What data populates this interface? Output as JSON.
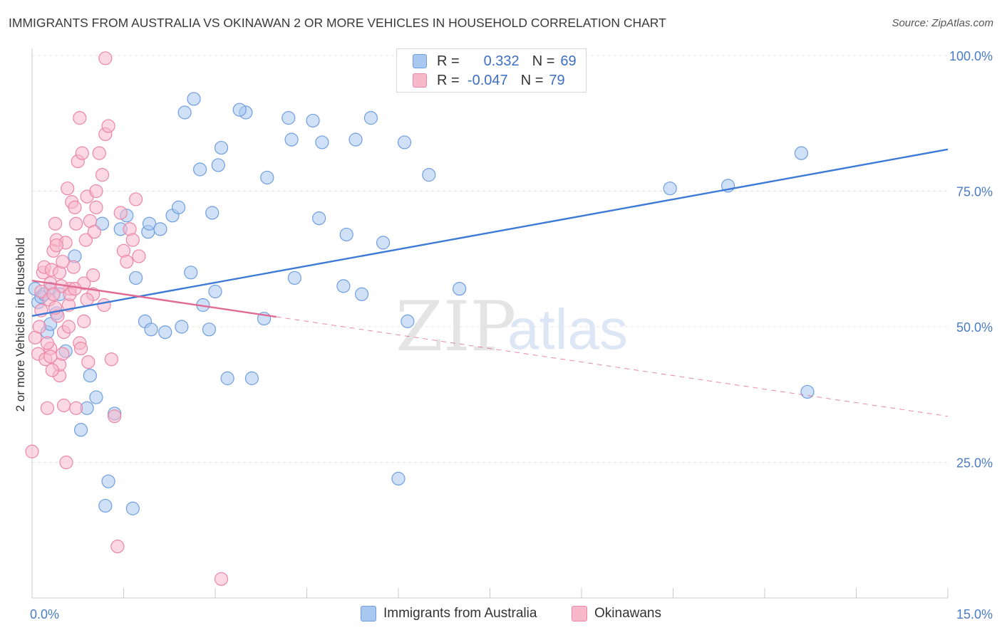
{
  "header": {
    "title": "IMMIGRANTS FROM AUSTRALIA VS OKINAWAN 2 OR MORE VEHICLES IN HOUSEHOLD CORRELATION CHART",
    "source": "Source: ZipAtlas.com"
  },
  "watermark": {
    "zip": "ZIP",
    "atlas": "atlas"
  },
  "legend": {
    "r_label": "R =",
    "n_label": "N =",
    "rows": [
      {
        "r": "0.332",
        "n": "69",
        "color": "#a9c8f0",
        "border": "#6f9ee0"
      },
      {
        "r": "-0.047",
        "n": "79",
        "color": "#f8b8cc",
        "border": "#ec86a6"
      }
    ]
  },
  "chart_data": {
    "type": "scatter",
    "xlabel": "",
    "ylabel": "2 or more Vehicles in Household",
    "xlim": [
      0,
      15
    ],
    "ylim": [
      0,
      100
    ],
    "x_tick_labels": [
      "0.0%",
      "15.0%"
    ],
    "y_tick_labels": [
      "25.0%",
      "50.0%",
      "75.0%",
      "100.0%"
    ],
    "y_ticks": [
      25,
      50,
      75,
      100
    ],
    "grid": true,
    "legend_position": "bottom-center",
    "series": [
      {
        "name": "Immigrants from Australia",
        "color": "#a9c8f0",
        "stroke": "#6f9ee0",
        "trend": {
          "x": [
            0,
            15
          ],
          "y": [
            52,
            82.7
          ],
          "color": "#3d7ad6",
          "dashed_from": null
        },
        "points": [
          [
            0.05,
            57
          ],
          [
            0.1,
            54.5
          ],
          [
            0.15,
            55.5
          ],
          [
            0.2,
            56
          ],
          [
            0.25,
            49
          ],
          [
            0.3,
            57
          ],
          [
            0.3,
            50.5
          ],
          [
            0.4,
            52.5
          ],
          [
            0.45,
            56
          ],
          [
            0.55,
            45.5
          ],
          [
            0.7,
            63
          ],
          [
            0.8,
            31
          ],
          [
            0.9,
            35
          ],
          [
            0.95,
            41
          ],
          [
            1.05,
            37
          ],
          [
            1.15,
            69
          ],
          [
            1.2,
            17
          ],
          [
            1.25,
            21.5
          ],
          [
            1.35,
            34
          ],
          [
            1.45,
            68
          ],
          [
            1.55,
            70.5
          ],
          [
            1.65,
            16.5
          ],
          [
            1.7,
            59
          ],
          [
            1.85,
            51
          ],
          [
            1.9,
            67.5
          ],
          [
            1.92,
            69
          ],
          [
            1.95,
            49.5
          ],
          [
            2.1,
            68
          ],
          [
            2.18,
            49
          ],
          [
            2.3,
            70.5
          ],
          [
            2.4,
            72
          ],
          [
            2.45,
            50
          ],
          [
            2.5,
            89.5
          ],
          [
            2.6,
            60
          ],
          [
            2.65,
            92
          ],
          [
            2.75,
            79
          ],
          [
            2.8,
            54
          ],
          [
            2.9,
            49.5
          ],
          [
            2.95,
            71
          ],
          [
            3.0,
            56.5
          ],
          [
            3.05,
            79.8
          ],
          [
            3.1,
            83
          ],
          [
            3.2,
            40.5
          ],
          [
            3.5,
            89.5
          ],
          [
            3.6,
            40.5
          ],
          [
            3.8,
            51.5
          ],
          [
            3.85,
            77.5
          ],
          [
            4.2,
            88.5
          ],
          [
            4.25,
            84.5
          ],
          [
            4.3,
            59
          ],
          [
            4.6,
            88
          ],
          [
            4.7,
            70
          ],
          [
            4.75,
            84
          ],
          [
            5.1,
            57.5
          ],
          [
            5.15,
            67
          ],
          [
            5.3,
            84.5
          ],
          [
            5.4,
            56
          ],
          [
            5.55,
            88.5
          ],
          [
            5.75,
            65.5
          ],
          [
            6.0,
            22
          ],
          [
            6.1,
            84
          ],
          [
            6.15,
            51
          ],
          [
            6.5,
            78
          ],
          [
            7.0,
            57
          ],
          [
            10.45,
            75.5
          ],
          [
            11.4,
            76
          ],
          [
            12.6,
            82
          ],
          [
            12.7,
            38
          ],
          [
            3.4,
            90
          ]
        ]
      },
      {
        "name": "Okinawans",
        "color": "#f8b8cc",
        "stroke": "#ec86a6",
        "trend": {
          "x": [
            0,
            15
          ],
          "y": [
            58.5,
            33.5
          ],
          "color": "#e06a94",
          "dashed_from": 4.0
        },
        "points": [
          [
            0.0,
            27
          ],
          [
            0.05,
            48
          ],
          [
            0.1,
            45
          ],
          [
            0.12,
            50
          ],
          [
            0.15,
            53
          ],
          [
            0.15,
            56.5
          ],
          [
            0.18,
            60
          ],
          [
            0.2,
            61
          ],
          [
            0.22,
            44
          ],
          [
            0.25,
            35
          ],
          [
            0.3,
            46
          ],
          [
            0.3,
            58
          ],
          [
            0.32,
            60.5
          ],
          [
            0.35,
            64
          ],
          [
            0.38,
            69
          ],
          [
            0.4,
            66
          ],
          [
            0.42,
            52
          ],
          [
            0.45,
            41
          ],
          [
            0.45,
            43
          ],
          [
            0.5,
            45
          ],
          [
            0.52,
            49
          ],
          [
            0.55,
            65.5
          ],
          [
            0.58,
            75.5
          ],
          [
            0.6,
            54
          ],
          [
            0.62,
            57
          ],
          [
            0.65,
            73
          ],
          [
            0.7,
            72
          ],
          [
            0.72,
            69
          ],
          [
            0.75,
            80.5
          ],
          [
            0.78,
            88.5
          ],
          [
            0.82,
            82
          ],
          [
            0.85,
            58
          ],
          [
            0.88,
            66
          ],
          [
            0.9,
            74
          ],
          [
            0.95,
            69.5
          ],
          [
            1.0,
            56
          ],
          [
            1.02,
            67.5
          ],
          [
            1.05,
            72
          ],
          [
            1.1,
            82
          ],
          [
            1.15,
            78
          ],
          [
            1.18,
            54
          ],
          [
            1.2,
            85.5
          ],
          [
            1.25,
            87
          ],
          [
            1.3,
            44
          ],
          [
            1.35,
            33.5
          ],
          [
            1.4,
            9.5
          ],
          [
            1.45,
            71
          ],
          [
            1.5,
            64
          ],
          [
            1.55,
            62
          ],
          [
            1.6,
            68
          ],
          [
            1.65,
            66
          ],
          [
            1.7,
            73.5
          ],
          [
            1.75,
            63
          ],
          [
            1.2,
            99.5
          ],
          [
            0.28,
            55
          ],
          [
            0.33,
            42
          ],
          [
            0.38,
            53.5
          ],
          [
            0.48,
            57.5
          ],
          [
            0.52,
            35.5
          ],
          [
            0.56,
            25
          ],
          [
            0.62,
            56
          ],
          [
            0.68,
            61
          ],
          [
            0.72,
            35
          ],
          [
            0.78,
            47
          ],
          [
            0.85,
            51
          ],
          [
            0.92,
            43.5
          ],
          [
            1.0,
            59.5
          ],
          [
            3.1,
            3.5
          ],
          [
            0.25,
            47
          ],
          [
            0.3,
            44.5
          ],
          [
            0.35,
            56
          ],
          [
            0.4,
            65
          ],
          [
            0.45,
            60
          ],
          [
            0.5,
            62
          ],
          [
            0.6,
            50
          ],
          [
            0.7,
            57
          ],
          [
            0.8,
            46
          ],
          [
            0.9,
            55
          ],
          [
            1.05,
            75
          ]
        ]
      }
    ]
  }
}
